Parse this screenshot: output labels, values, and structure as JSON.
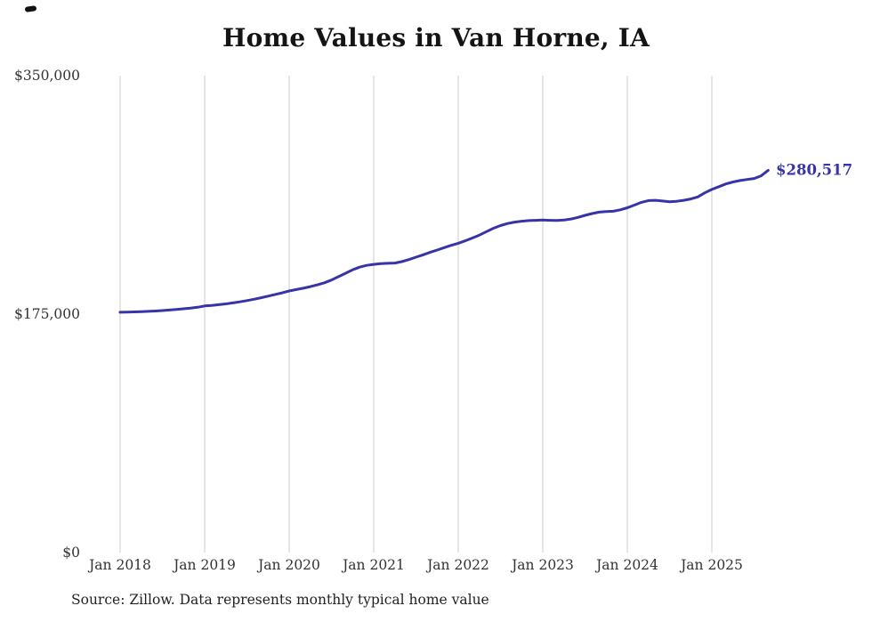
{
  "chart_data": {
    "type": "line",
    "title": "Home Values in Van Horne, IA",
    "source": "Source: Zillow. Data represents monthly typical home value",
    "end_label": "$280,517",
    "final_value": 280517,
    "line_color": "#3734a8",
    "gridline_color": "#cccccc",
    "ylim": [
      0,
      350000
    ],
    "y_tick_labels": [
      "$350,000",
      "$175,000",
      "$0"
    ],
    "y_tick_values": [
      350000,
      175000,
      0
    ],
    "x_tick_labels": [
      "Jan 2018",
      "Jan 2019",
      "Jan 2020",
      "Jan 2021",
      "Jan 2022",
      "Jan 2023",
      "Jan 2024",
      "Jan 2025"
    ],
    "x_tick_indices": [
      0,
      12,
      24,
      36,
      48,
      60,
      72,
      84
    ],
    "grid": "vertical-only",
    "legend": "none",
    "x_start": "2018-01",
    "x_end": "2025-09",
    "months": [
      "2018-01",
      "2018-02",
      "2018-03",
      "2018-04",
      "2018-05",
      "2018-06",
      "2018-07",
      "2018-08",
      "2018-09",
      "2018-10",
      "2018-11",
      "2018-12",
      "2019-01",
      "2019-02",
      "2019-03",
      "2019-04",
      "2019-05",
      "2019-06",
      "2019-07",
      "2019-08",
      "2019-09",
      "2019-10",
      "2019-11",
      "2019-12",
      "2020-01",
      "2020-02",
      "2020-03",
      "2020-04",
      "2020-05",
      "2020-06",
      "2020-07",
      "2020-08",
      "2020-09",
      "2020-10",
      "2020-11",
      "2020-12",
      "2021-01",
      "2021-02",
      "2021-03",
      "2021-04",
      "2021-05",
      "2021-06",
      "2021-07",
      "2021-08",
      "2021-09",
      "2021-10",
      "2021-11",
      "2021-12",
      "2022-01",
      "2022-02",
      "2022-03",
      "2022-04",
      "2022-05",
      "2022-06",
      "2022-07",
      "2022-08",
      "2022-09",
      "2022-10",
      "2022-11",
      "2022-12",
      "2023-01",
      "2023-02",
      "2023-03",
      "2023-04",
      "2023-05",
      "2023-06",
      "2023-07",
      "2023-08",
      "2023-09",
      "2023-10",
      "2023-11",
      "2023-12",
      "2024-01",
      "2024-02",
      "2024-03",
      "2024-04",
      "2024-05",
      "2024-06",
      "2024-07",
      "2024-08",
      "2024-09",
      "2024-10",
      "2024-11",
      "2024-12",
      "2025-01",
      "2025-02",
      "2025-03",
      "2025-04",
      "2025-05",
      "2025-06",
      "2025-07",
      "2025-08",
      "2025-09"
    ],
    "values": [
      176400,
      176500,
      176600,
      176800,
      177000,
      177300,
      177600,
      178000,
      178400,
      178900,
      179400,
      180000,
      181000,
      181400,
      181900,
      182500,
      183200,
      184000,
      184900,
      185900,
      187000,
      188200,
      189400,
      190600,
      192000,
      193000,
      194000,
      195200,
      196500,
      198000,
      200000,
      202500,
      205000,
      207500,
      209500,
      210800,
      211500,
      212000,
      212300,
      212500,
      213500,
      215000,
      216800,
      218500,
      220300,
      222000,
      223800,
      225500,
      227000,
      228800,
      230800,
      233000,
      235500,
      238000,
      240000,
      241500,
      242500,
      243200,
      243600,
      243800,
      244000,
      243800,
      243700,
      244000,
      244800,
      246000,
      247500,
      248800,
      249800,
      250300,
      250500,
      251500,
      253000,
      255000,
      257000,
      258300,
      258500,
      258000,
      257500,
      257800,
      258500,
      259500,
      261000,
      264000,
      266500,
      268500,
      270500,
      272000,
      273000,
      273800,
      274500,
      276500,
      280517
    ]
  }
}
